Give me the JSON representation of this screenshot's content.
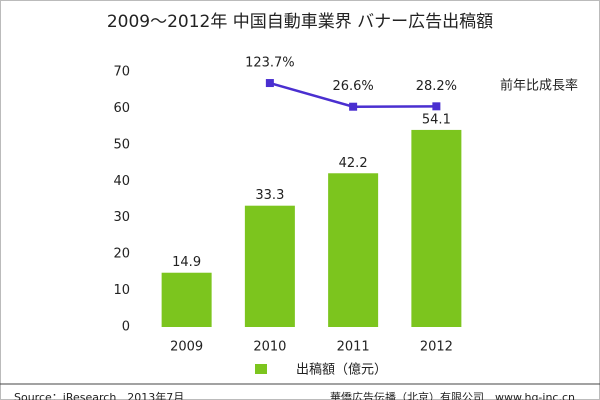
{
  "chart_data": {
    "type": "bar",
    "title": "2009～2012年 中国自動車業界 バナー広告出稿額",
    "categories": [
      "2009",
      "2010",
      "2011",
      "2012"
    ],
    "series": [
      {
        "name": "出稿額（億元）",
        "type": "bar",
        "color": "#7cc51e",
        "values": [
          14.9,
          33.3,
          42.2,
          54.1
        ]
      },
      {
        "name": "前年比成長率",
        "type": "line",
        "axis": "y2",
        "color": "#4a2fd0",
        "values": [
          null,
          123.7,
          26.6,
          28.2
        ],
        "value_labels": [
          null,
          "123.7%",
          "26.6%",
          "28.2%"
        ]
      }
    ],
    "ylim": [
      0,
      70
    ],
    "yticks": [
      0,
      10,
      20,
      30,
      40,
      50,
      60,
      70
    ],
    "y2lim": [
      -877,
      169
    ],
    "source": "Source：iResearch　2013年7月",
    "credit": "華僑広告伝播（北京）有限公司　www.hq-inc.cn"
  }
}
